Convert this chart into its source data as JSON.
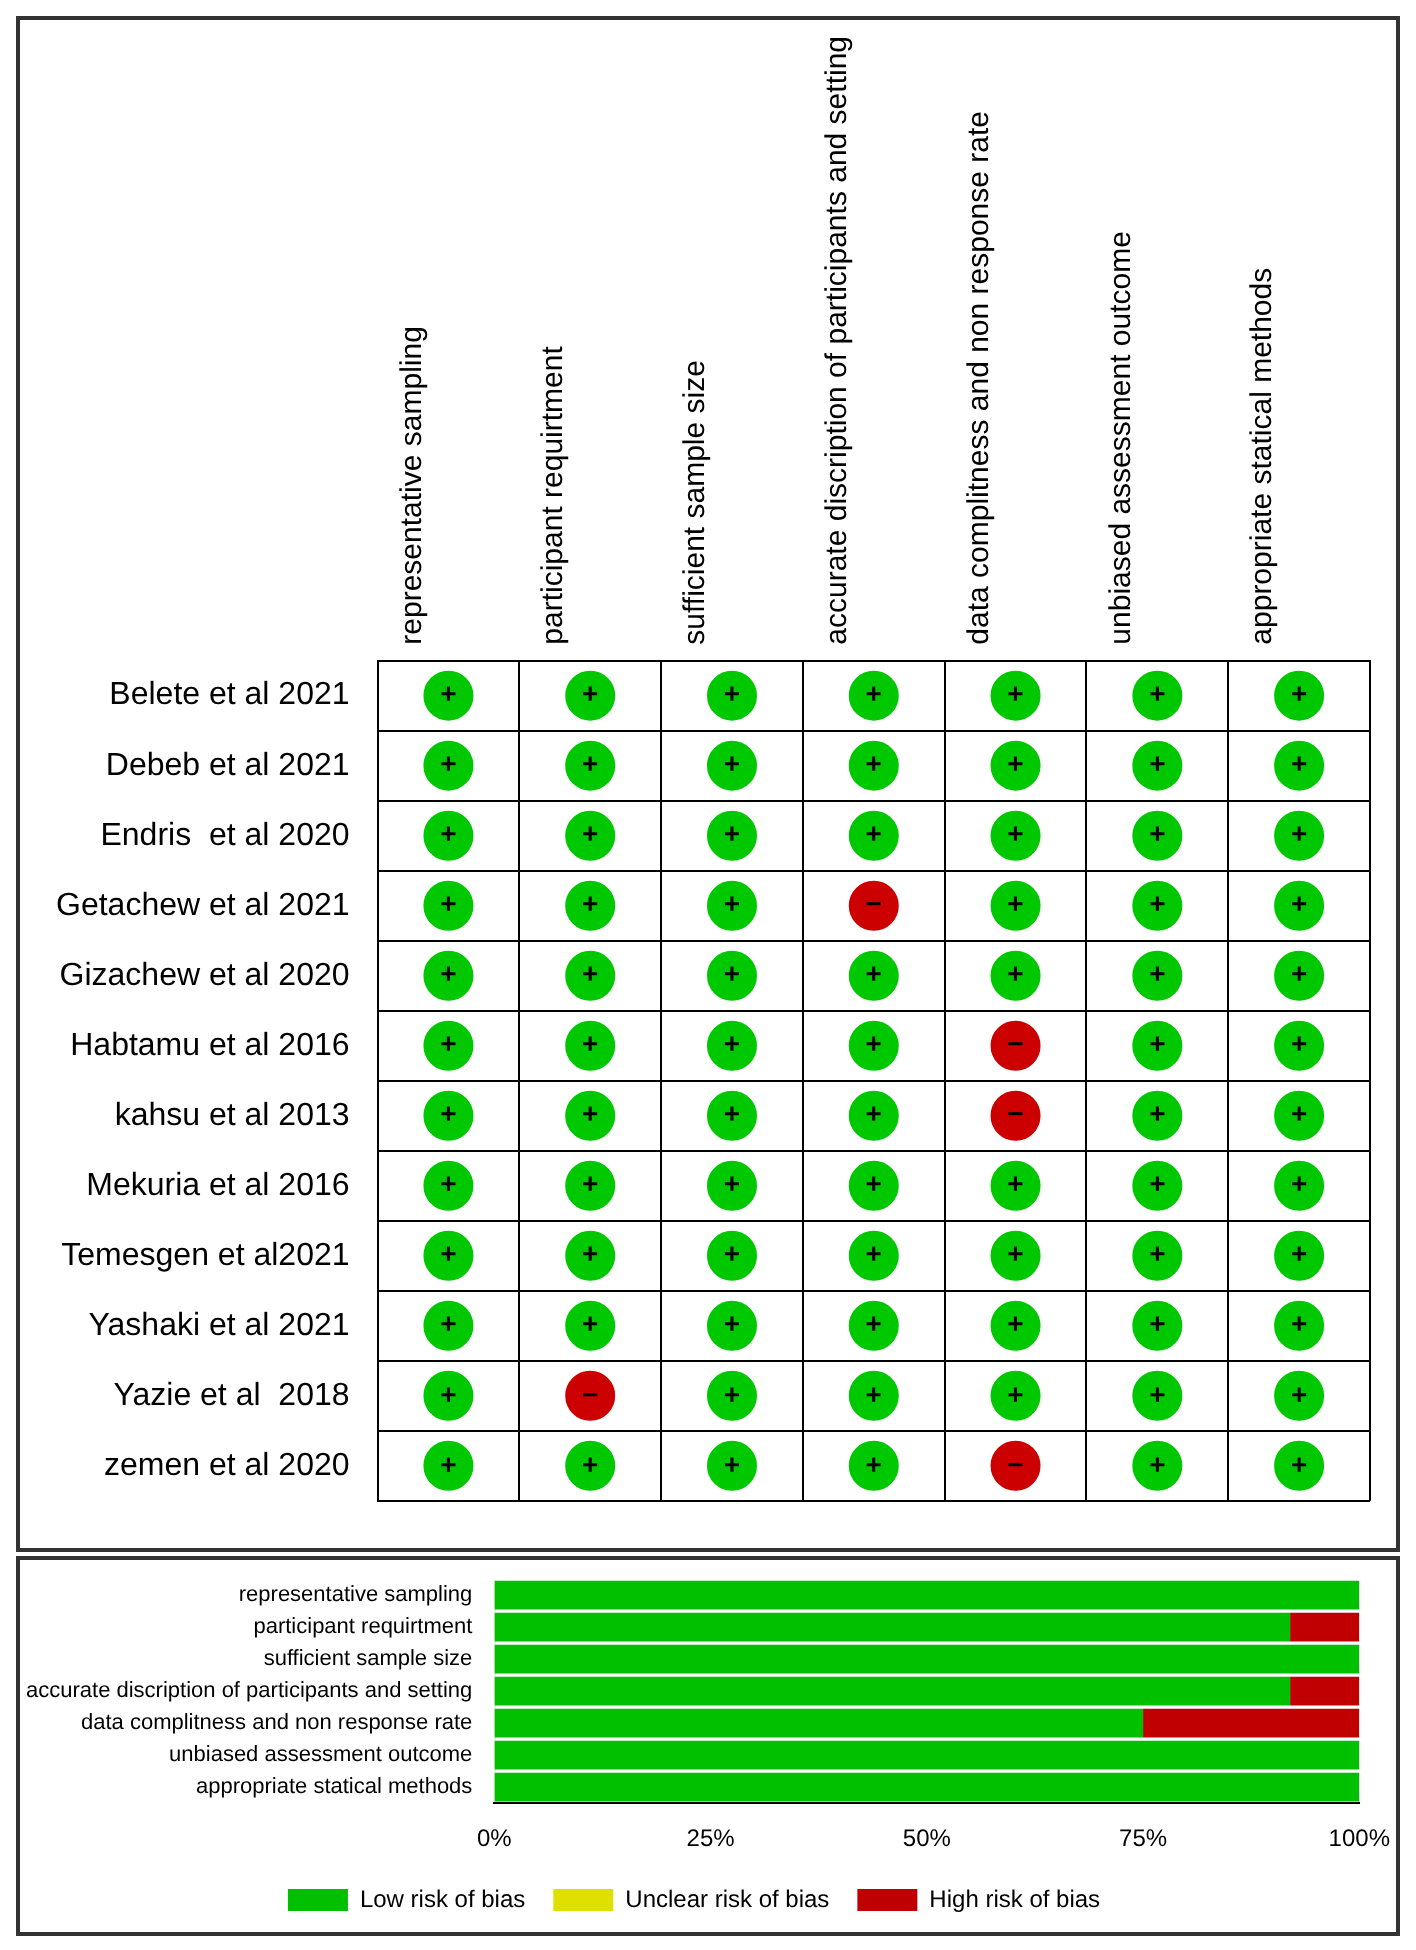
{
  "chart_data": [
    {
      "type": "heatmap",
      "categories": [
        "representative sampling",
        "participant requirtment",
        "sufficient sample size",
        "accurate discription of participants and setting",
        "data complitness and non response rate",
        "unbiased assessment outcome",
        "appropriate statical methods"
      ],
      "y_categories": [
        "Belete et al 2021",
        "Debeb et al 2021",
        "Endris  et al 2020",
        "Getachew et al 2021",
        "Gizachew et al 2020",
        "Habtamu et al 2016",
        "kahsu et al 2013",
        "Mekuria et al 2016",
        "Temesgen et al2021",
        "Yashaki et al 2021",
        "Yazie et al  2018",
        "zemen et al 2020"
      ],
      "cells": [
        [
          "+",
          "+",
          "+",
          "+",
          "+",
          "+",
          "+"
        ],
        [
          "+",
          "+",
          "+",
          "+",
          "+",
          "+",
          "+"
        ],
        [
          "+",
          "+",
          "+",
          "+",
          "+",
          "+",
          "+"
        ],
        [
          "+",
          "+",
          "+",
          "−",
          "+",
          "+",
          "+"
        ],
        [
          "+",
          "+",
          "+",
          "+",
          "+",
          "+",
          "+"
        ],
        [
          "+",
          "+",
          "+",
          "+",
          "−",
          "+",
          "+"
        ],
        [
          "+",
          "+",
          "+",
          "+",
          "−",
          "+",
          "+"
        ],
        [
          "+",
          "+",
          "+",
          "+",
          "+",
          "+",
          "+"
        ],
        [
          "+",
          "+",
          "+",
          "+",
          "+",
          "+",
          "+"
        ],
        [
          "+",
          "+",
          "+",
          "+",
          "+",
          "+",
          "+"
        ],
        [
          "+",
          "−",
          "+",
          "+",
          "+",
          "+",
          "+"
        ],
        [
          "+",
          "+",
          "+",
          "+",
          "−",
          "+",
          "+"
        ]
      ],
      "colors": [
        [
          "#00c800",
          "#00c800",
          "#00c800",
          "#00c800",
          "#00c800",
          "#00c800",
          "#00c800"
        ],
        [
          "#00c800",
          "#00c800",
          "#00c800",
          "#00c800",
          "#00c800",
          "#00c800",
          "#00c800"
        ],
        [
          "#00c800",
          "#00c800",
          "#00c800",
          "#00c800",
          "#00c800",
          "#00c800",
          "#00c800"
        ],
        [
          "#00c800",
          "#00c800",
          "#00c800",
          "#cc0000",
          "#00c800",
          "#00c800",
          "#00c800"
        ],
        [
          "#00c800",
          "#00c800",
          "#00c800",
          "#00c800",
          "#00c800",
          "#00c800",
          "#00c800"
        ],
        [
          "#00c800",
          "#00c800",
          "#00c800",
          "#00c800",
          "#cc0000",
          "#00c800",
          "#00c800"
        ],
        [
          "#00c800",
          "#00c800",
          "#00c800",
          "#00c800",
          "#cc0000",
          "#00c800",
          "#00c800"
        ],
        [
          "#00c800",
          "#00c800",
          "#00c800",
          "#00c800",
          "#00c800",
          "#00c800",
          "#00c800"
        ],
        [
          "#00c800",
          "#00c800",
          "#00c800",
          "#00c800",
          "#00c800",
          "#00c800",
          "#00c800"
        ],
        [
          "#00c800",
          "#00c800",
          "#00c800",
          "#00c800",
          "#00c800",
          "#00c800",
          "#00c800"
        ],
        [
          "#00c800",
          "#cc0000",
          "#00c800",
          "#00c800",
          "#00c800",
          "#00c800",
          "#00c800"
        ],
        [
          "#00c800",
          "#00c800",
          "#00c800",
          "#00c800",
          "#cc0000",
          "#00c800",
          "#00c800"
        ]
      ],
      "grid": true
    },
    {
      "type": "bar",
      "orientation": "horizontal",
      "stacked": true,
      "categories": [
        "representative sampling",
        "participant requirtment",
        "sufficient sample size",
        "accurate discription of participants and setting",
        "data complitness and non response rate",
        "unbiased assessment outcome",
        "appropriate statical methods"
      ],
      "series": [
        {
          "name": "Low risk of bias",
          "color": "#00c000",
          "values": [
            100,
            92,
            100,
            92,
            75,
            100,
            100
          ]
        },
        {
          "name": "Unclear risk of bias",
          "color": "#e0e000",
          "values": [
            0,
            0,
            0,
            0,
            0,
            0,
            0
          ]
        },
        {
          "name": "High risk of bias",
          "color": "#c00000",
          "values": [
            0,
            8,
            0,
            8,
            25,
            0,
            0
          ]
        }
      ],
      "xlim": [
        0,
        100
      ],
      "xticks": [
        {
          "value": 0,
          "label": "0%"
        },
        {
          "value": 25,
          "label": "25%"
        },
        {
          "value": 50,
          "label": "50%"
        },
        {
          "value": 75,
          "label": "75%"
        },
        {
          "value": 100,
          "label": "100%"
        }
      ],
      "grid": false,
      "legend": "bottom"
    }
  ]
}
